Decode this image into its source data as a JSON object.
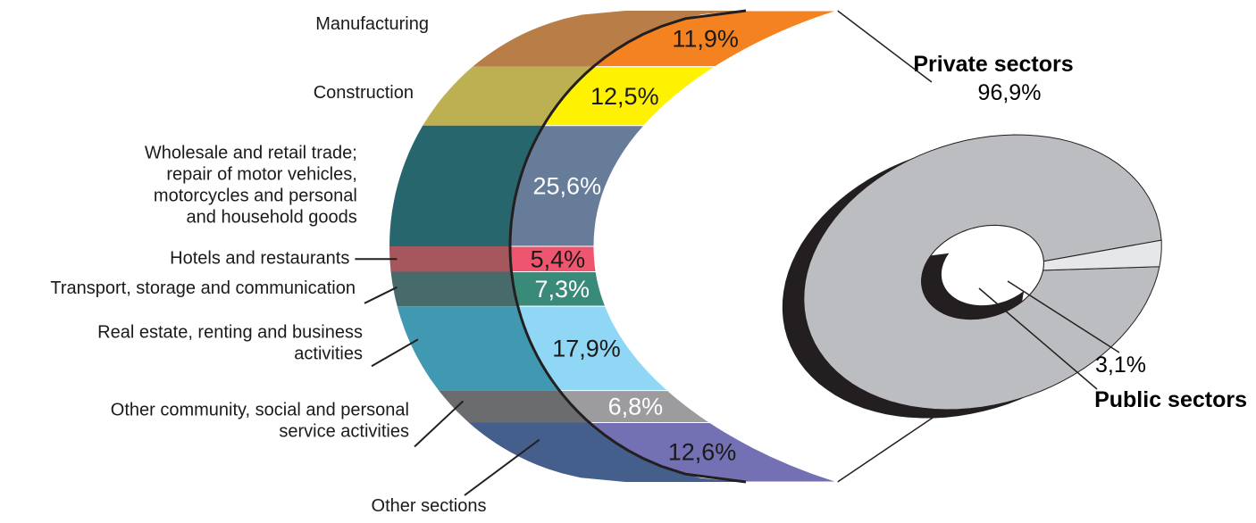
{
  "chart_data": [
    {
      "type": "bar",
      "stacked": true,
      "unit": "%",
      "segments": [
        {
          "label": "Manufacturing",
          "value": 11.9,
          "value_label": "11,9%",
          "color": "#f58220",
          "shade": "#b97d47",
          "value_color": "#1a1a1a"
        },
        {
          "label": "Construction",
          "value": 12.5,
          "value_label": "12,5%",
          "color": "#fff200",
          "shade": "#bcb053",
          "value_color": "#1a1a1a"
        },
        {
          "label": "Wholesale and retail trade;\nrepair of motor vehicles,\nmotorcycles and personal\nand household goods",
          "value": 25.6,
          "value_label": "25,6%",
          "color": "#667c99",
          "shade": "#28666e",
          "value_color": "#ffffff"
        },
        {
          "label": "Hotels and restaurants",
          "value": 5.4,
          "value_label": "5,4%",
          "color": "#ee5670",
          "shade": "#a6575d",
          "value_color": "#1a1a1a"
        },
        {
          "label": "Transport, storage and communication",
          "value": 7.3,
          "value_label": "7,3%",
          "color": "#3a8a79",
          "shade": "#476a6a",
          "value_color": "#ffffff"
        },
        {
          "label": "Real estate, renting and business\nactivities",
          "value": 17.9,
          "value_label": "17,9%",
          "color": "#8fd7f5",
          "shade": "#4099b1",
          "value_color": "#1a1a1a"
        },
        {
          "label": "Other community, social and personal\nservice activities",
          "value": 6.8,
          "value_label": "6,8%",
          "color": "#9c9c9f",
          "shade": "#6b6c6e",
          "value_color": "#ffffff"
        },
        {
          "label": "Other sections",
          "value": 12.6,
          "value_label": "12,6%",
          "color": "#7470b4",
          "shade": "#445f8b",
          "value_color": "#1a1a1a"
        }
      ]
    },
    {
      "type": "pie",
      "variant": "donut",
      "slices": [
        {
          "label": "Private sectors",
          "value": 96.9,
          "value_label": "96,9%",
          "color": "#bcbdc0",
          "exploded": true
        },
        {
          "label": "Public sectors",
          "value": 3.1,
          "value_label": "3,1%",
          "color": "#e6e7e8"
        }
      ]
    }
  ]
}
